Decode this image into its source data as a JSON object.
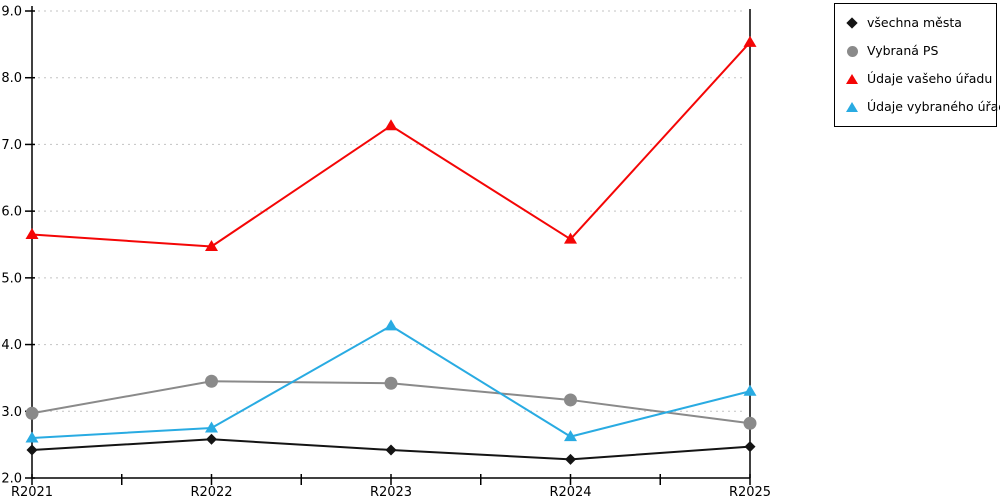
{
  "chart_data": {
    "type": "line",
    "title": "",
    "xlabel": "",
    "ylabel": "",
    "categories": [
      "R2021",
      "R2022",
      "R2023",
      "R2024",
      "R2025"
    ],
    "series": [
      {
        "name": "všechna města",
        "marker": "diamond",
        "color": "#141414",
        "values": [
          2.42,
          2.58,
          2.42,
          2.28,
          2.47
        ]
      },
      {
        "name": "Vybraná PS",
        "marker": "circle",
        "color": "#8a8a8a",
        "values": [
          2.97,
          3.45,
          3.42,
          3.17,
          2.82
        ]
      },
      {
        "name": "Údaje vašeho úřadu",
        "marker": "triangle",
        "color": "#f40606",
        "values": [
          5.65,
          5.47,
          7.28,
          5.58,
          8.53
        ]
      },
      {
        "name": "Údaje vybraného úřadu",
        "marker": "triangle",
        "color": "#29abe2",
        "values": [
          2.6,
          2.75,
          4.28,
          2.62,
          3.3
        ]
      }
    ],
    "ylim": [
      2.0,
      9.0
    ],
    "y_tick_step": 1.0,
    "y_tick_labels": [
      "2.0",
      "3.0",
      "4.0",
      "5.0",
      "6.0",
      "7.0",
      "8.0",
      "9.0"
    ],
    "grid": "horizontal-dotted",
    "grid_color": "#c3c3c3",
    "axis_color": "#000000",
    "background_color": "#ffffff",
    "legend_position": "outside-top-right"
  }
}
